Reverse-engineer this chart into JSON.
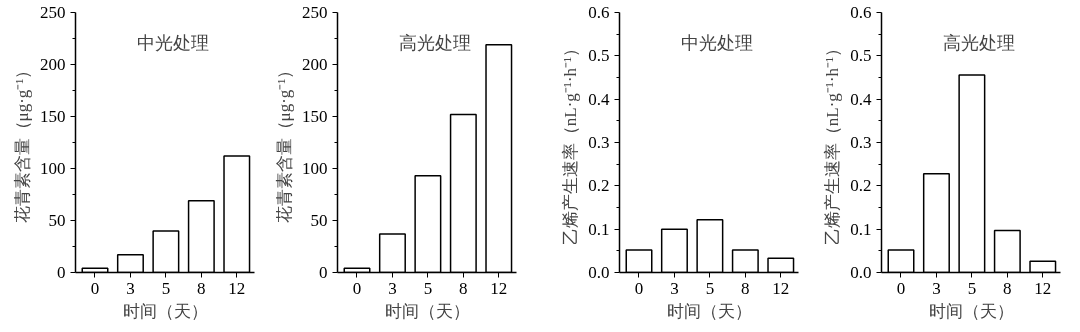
{
  "chart_data": [
    {
      "type": "bar",
      "title": "中光处理",
      "xlabel": "时间（天）",
      "ylabel": "花青素含量（μg·g⁻¹）",
      "categories": [
        "0",
        "3",
        "5",
        "8",
        "12"
      ],
      "values": [
        4,
        17,
        40,
        69,
        112
      ],
      "color": "#ffffff",
      "ylim": [
        0,
        250
      ],
      "yticks": [
        0,
        50,
        100,
        150,
        200,
        250
      ],
      "grid": false
    },
    {
      "type": "bar",
      "title": "高光处理",
      "xlabel": "时间（天）",
      "ylabel": "花青素含量（μg·g⁻¹）",
      "categories": [
        "0",
        "3",
        "5",
        "8",
        "12"
      ],
      "values": [
        4,
        37,
        93,
        152,
        219
      ],
      "color": "#ffffff",
      "ylim": [
        0,
        250
      ],
      "yticks": [
        0,
        50,
        100,
        150,
        200,
        250
      ],
      "grid": false
    },
    {
      "type": "bar",
      "title": "中光处理",
      "xlabel": "时间（天）",
      "ylabel": "乙烯产生速率（nL·g⁻¹·h⁻¹）",
      "categories": [
        "0",
        "3",
        "5",
        "8",
        "12"
      ],
      "values": [
        0.052,
        0.1,
        0.122,
        0.052,
        0.033
      ],
      "color": "#ffffff",
      "ylim": [
        0,
        0.6
      ],
      "yticks": [
        {
          "value": 0,
          "label": "0.0"
        },
        0.1,
        0.2,
        0.3,
        0.4,
        0.5,
        0.6
      ],
      "grid": false
    },
    {
      "type": "bar",
      "title": "高光处理",
      "xlabel": "时间（天）",
      "ylabel": "乙烯产生速率（nL·g⁻¹·h⁻¹）",
      "categories": [
        "0",
        "3",
        "5",
        "8",
        "12"
      ],
      "values": [
        0.052,
        0.228,
        0.456,
        0.097,
        0.026
      ],
      "color": "#ffffff",
      "ylim": [
        0,
        0.6
      ],
      "yticks": [
        {
          "value": 0,
          "label": "0.0"
        },
        0.1,
        0.2,
        0.3,
        0.4,
        0.5,
        0.6
      ],
      "grid": false
    }
  ]
}
